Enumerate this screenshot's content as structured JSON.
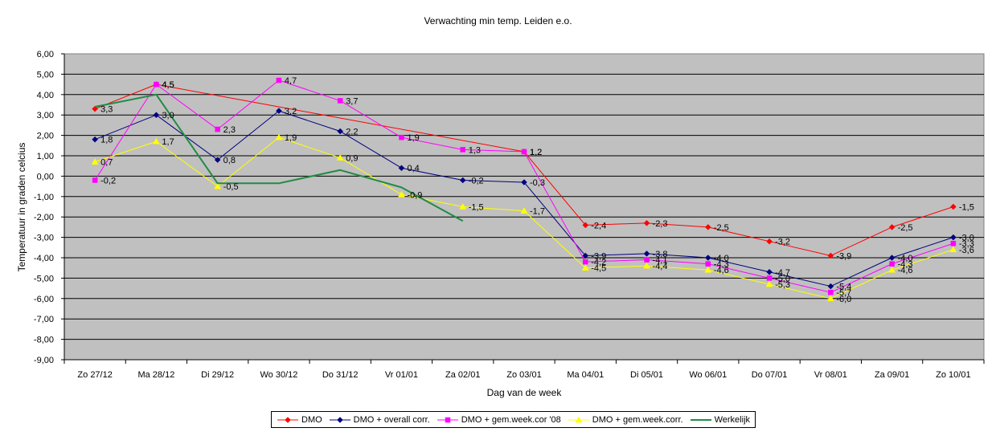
{
  "chart_data": {
    "type": "line",
    "title": "Verwachting min temp. Leiden e.o.",
    "xlabel": "Dag van de week",
    "ylabel": "Temperatuur in graden celcius",
    "ylim": [
      -9,
      6
    ],
    "yticks": [
      "6,00",
      "5,00",
      "4,00",
      "3,00",
      "2,00",
      "1,00",
      "0,00",
      "-1,00",
      "-2,00",
      "-3,00",
      "-4,00",
      "-5,00",
      "-6,00",
      "-7,00",
      "-8,00",
      "-9,00"
    ],
    "categories": [
      "Zo 27/12",
      "Ma 28/12",
      "Di 29/12",
      "Wo 30/12",
      "Do 31/12",
      "Vr 01/01",
      "Za 02/01",
      "Zo 03/01",
      "Ma 04/01",
      "Di 05/01",
      "Wo 06/01",
      "Do 07/01",
      "Vr 08/01",
      "Za 09/01",
      "Zo 10/01"
    ],
    "grid": true,
    "plot_background": "#c0c0c0",
    "legend_position": "bottom",
    "series": [
      {
        "name": "DMO",
        "color": "#ff0000",
        "marker": "diamond",
        "values": [
          3.3,
          4.5,
          null,
          null,
          null,
          null,
          null,
          1.2,
          -2.4,
          -2.3,
          -2.5,
          -3.2,
          -3.9,
          -2.5,
          -1.5
        ],
        "labels": [
          "3,3",
          "4,5",
          "",
          "",
          "",
          "",
          "",
          "1,2",
          "-2,4",
          "-2,3",
          "-2,5",
          "-3,2",
          "-3,9",
          "-2,5",
          "-1,5"
        ]
      },
      {
        "name": "DMO + overall corr.",
        "color": "#000080",
        "marker": "diamond",
        "values": [
          1.8,
          3.0,
          0.8,
          3.2,
          2.2,
          0.4,
          -0.2,
          -0.3,
          -3.9,
          -3.8,
          -4.0,
          -4.7,
          -5.4,
          -4.0,
          -3.0
        ],
        "labels": [
          "1,8",
          "3,0",
          "0,8",
          "3,2",
          "2,2",
          "0,4",
          "-0,2",
          "-0,3",
          "-3,9",
          "-3,8",
          "-4,0",
          "-4,7",
          "-5,4",
          "-4,0",
          "-3,0"
        ]
      },
      {
        "name": "DMO + gem.week.cor '08",
        "color": "#ff00ff",
        "marker": "square",
        "values": [
          -0.2,
          4.5,
          2.3,
          4.7,
          3.7,
          1.9,
          1.3,
          1.2,
          -4.2,
          -4.1,
          -4.3,
          -5.0,
          -5.7,
          -4.3,
          -3.3
        ],
        "labels": [
          "-0,2",
          "4,5",
          "2,3",
          "4,7",
          "3,7",
          "1,9",
          "1,3",
          "1,2",
          "-4,2",
          "-4,1",
          "-4,3",
          "-5,0",
          "-5,7",
          "-4,3",
          "-3,3"
        ]
      },
      {
        "name": "DMO + gem.week.corr.",
        "color": "#ffff00",
        "marker": "triangle",
        "values": [
          0.7,
          1.7,
          -0.5,
          1.9,
          0.9,
          -0.9,
          -1.5,
          -1.7,
          -4.5,
          -4.4,
          -4.6,
          -5.3,
          -6.0,
          -4.6,
          -3.6
        ],
        "labels": [
          "0,7",
          "1,7",
          "-0,5",
          "1,9",
          "0,9",
          "-0,9",
          "-1,5",
          "-1,7",
          "-4,5",
          "-4,4",
          "-4,6",
          "-5,3",
          "-6,0",
          "-4,6",
          "-3,6"
        ]
      },
      {
        "name": "Werkelijk",
        "color": "#228b44",
        "marker": "none",
        "values": [
          3.4,
          4.0,
          -0.35,
          -0.35,
          0.3,
          -0.55,
          -2.2,
          null,
          null,
          null,
          null,
          null,
          null,
          null,
          null
        ],
        "labels": []
      }
    ]
  }
}
